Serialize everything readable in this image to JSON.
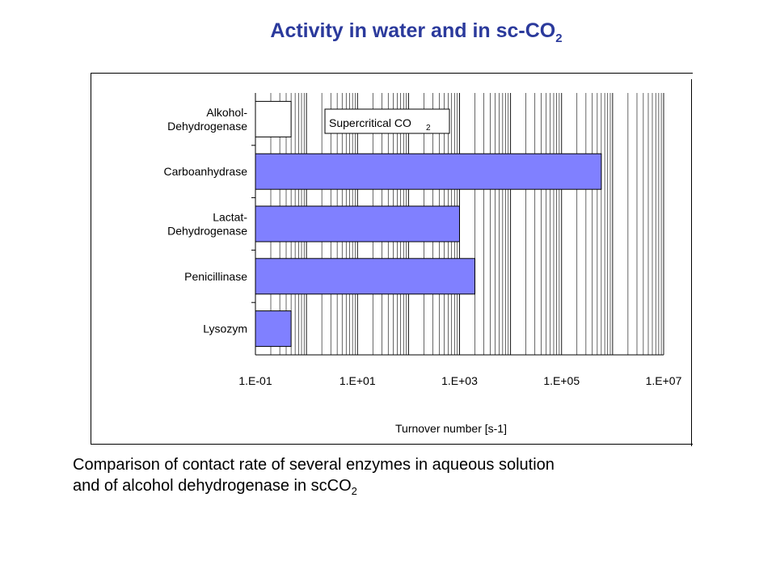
{
  "title": {
    "main": "Activity in water and in sc-CO",
    "sub": "2"
  },
  "caption": {
    "line1": "Comparison of contact rate of several enzymes in aqueous solution",
    "line2": "and of alcohol dehydrogenase in scCO",
    "line2_sub": "2"
  },
  "chart_data": {
    "type": "bar",
    "orientation": "horizontal",
    "x_scale": "log",
    "xlim": [
      0.1,
      10000000
    ],
    "xticks": [
      "1.E-01",
      "1.E+01",
      "1.E+03",
      "1.E+05",
      "1.E+07"
    ],
    "xtick_values": [
      0.1,
      10,
      1000,
      100000,
      10000000
    ],
    "xlabel": "Turnover number [s-1]",
    "grid": "vertical minor log gridlines",
    "categories": [
      [
        "Alkohol-",
        "Dehydrogenase"
      ],
      [
        "Carboanhydrase"
      ],
      [
        "Lactat-",
        "Dehydrogenase"
      ],
      [
        "Penicillinase"
      ],
      [
        "Lysozym"
      ]
    ],
    "series": [
      {
        "name": "Supercritical CO2",
        "values": [
          0.5,
          null,
          null,
          null,
          null
        ],
        "color": "#ffffff"
      },
      {
        "name": "",
        "values": [
          null,
          600000,
          1000,
          2000,
          0.5
        ],
        "color": "#8080ff"
      }
    ],
    "legend": {
      "label": "Supercritical CO",
      "label_sub": "2",
      "placement": "inside-top"
    }
  }
}
